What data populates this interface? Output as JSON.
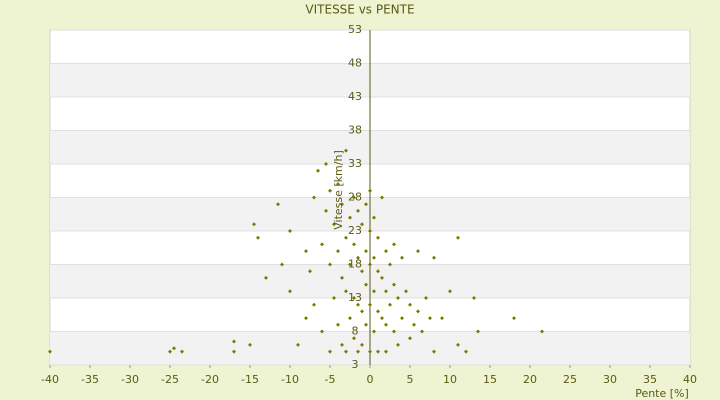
{
  "chart_data": {
    "type": "scatter",
    "title": "VITESSE vs PENTE",
    "x_label": "Pente [%]",
    "y_label": "Vitesse [km/h]",
    "color": "#7a7a00",
    "grid": true,
    "xlim": [
      -40,
      40
    ],
    "xticks": [
      -40,
      -35,
      -30,
      -25,
      -20,
      -15,
      -10,
      -5,
      0,
      5,
      10,
      15,
      20,
      25,
      30,
      35,
      40
    ],
    "ylim": [
      3,
      53
    ],
    "yticks": [
      3,
      8,
      13,
      18,
      23,
      28,
      33,
      38,
      43,
      48,
      53
    ],
    "x": [
      -40,
      -25,
      -24.5,
      -23.5,
      -17,
      -17,
      -15,
      -14.5,
      -14,
      -13,
      -11.5,
      -11,
      -10,
      -10,
      -9,
      -8,
      -8,
      -7.5,
      -7,
      -7,
      -6.5,
      -6,
      -6,
      -5.5,
      -5.5,
      -5,
      -5,
      -5,
      -4.5,
      -4.5,
      -4,
      -4,
      -4,
      -3.5,
      -3.5,
      -3.5,
      -3,
      -3,
      -3,
      -3,
      -2.5,
      -2.5,
      -2.5,
      -2,
      -2,
      -2,
      -2,
      -1.5,
      -1.5,
      -1.5,
      -1.5,
      -1,
      -1,
      -1,
      -1,
      -0.5,
      -0.5,
      -0.5,
      -0.5,
      0,
      0,
      0,
      0,
      0,
      0.5,
      0.5,
      0.5,
      0.5,
      1,
      1,
      1,
      1,
      1.5,
      1.5,
      1.5,
      2,
      2,
      2,
      2,
      2.5,
      2.5,
      3,
      3,
      3,
      3.5,
      3.5,
      4,
      4,
      4.5,
      5,
      5,
      5.5,
      6,
      6,
      6.5,
      7,
      7.5,
      8,
      8,
      9,
      10,
      11,
      11,
      12,
      13,
      13.5,
      18,
      21.5
    ],
    "values": [
      5,
      5,
      5.5,
      5,
      6.5,
      5,
      6,
      24,
      22,
      16,
      27,
      18,
      23,
      14,
      6,
      20,
      10,
      17,
      28,
      12,
      32,
      21,
      8,
      33,
      26,
      29,
      18,
      5,
      24,
      13,
      30,
      20,
      9,
      27,
      16,
      6,
      35,
      22,
      14,
      5,
      25,
      18,
      10,
      28,
      21,
      13,
      7,
      26,
      19,
      12,
      5,
      24,
      17,
      11,
      6,
      27,
      20,
      15,
      9,
      29,
      23,
      18,
      12,
      5,
      25,
      19,
      14,
      8,
      22,
      17,
      11,
      5,
      28,
      16,
      10,
      20,
      14,
      9,
      5,
      18,
      12,
      21,
      15,
      8,
      13,
      6,
      19,
      10,
      14,
      12,
      7,
      9,
      20,
      11,
      8,
      13,
      10,
      19,
      5,
      10,
      14,
      22,
      6,
      5,
      13,
      8,
      10,
      8
    ]
  }
}
